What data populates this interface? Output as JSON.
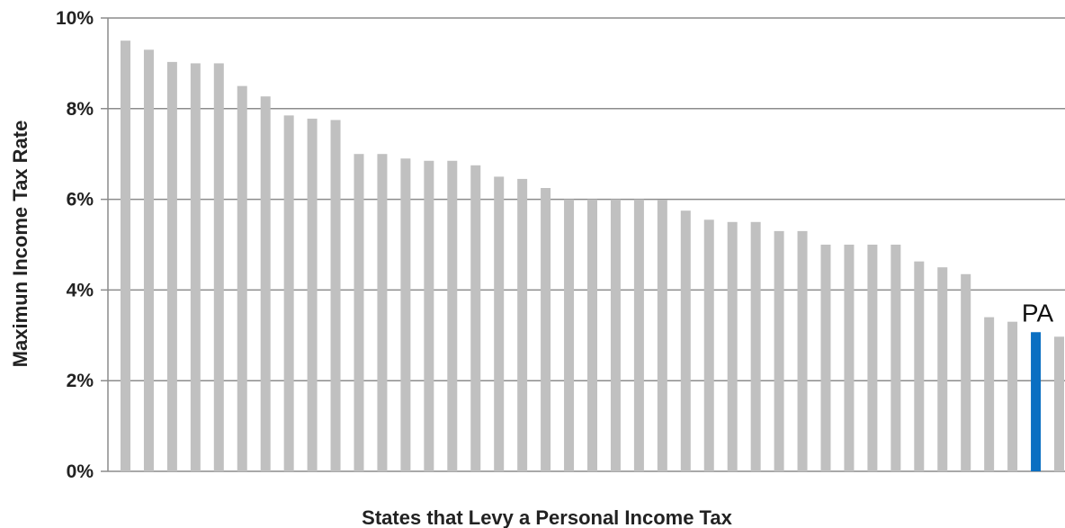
{
  "chart_data": {
    "type": "bar",
    "title": "",
    "xlabel": "States that Levy a Personal Income Tax",
    "ylabel": "Maximun Income Tax Rate",
    "ylim": [
      0,
      10
    ],
    "yticks": [
      "0%",
      "2%",
      "4%",
      "6%",
      "8%",
      "10%"
    ],
    "grid": true,
    "colors": {
      "default": "#c0c0c0",
      "highlight": "#0a6fc2",
      "grid": "#8c8c8c"
    },
    "highlight": {
      "index": 39,
      "label": "PA"
    },
    "values": [
      9.5,
      9.3,
      9.03,
      9.0,
      9.0,
      8.5,
      8.27,
      7.85,
      7.78,
      7.75,
      7.0,
      7.0,
      6.9,
      6.85,
      6.85,
      6.75,
      6.5,
      6.45,
      6.25,
      6.0,
      6.0,
      6.0,
      6.0,
      5.99,
      5.75,
      5.55,
      5.5,
      5.5,
      5.3,
      5.3,
      5.0,
      5.0,
      5.0,
      5.0,
      4.63,
      4.5,
      4.35,
      3.4,
      3.3,
      3.07,
      2.97
    ]
  }
}
